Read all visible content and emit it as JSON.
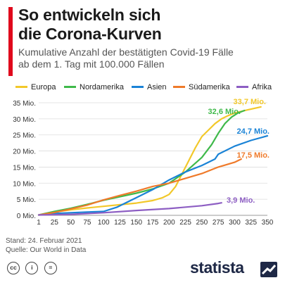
{
  "header": {
    "title_line1": "So entwickeln sich",
    "title_line2": "die Corona-Kurven",
    "subtitle_line1": "Kumulative Anzahl der bestätigten Covid-19 Fälle",
    "subtitle_line2": "ab dem 1. Tag mit 100.000 Fällen",
    "accent_color": "#e0081c"
  },
  "footer": {
    "stand": "Stand: 24. Februar 2021",
    "source": "Quelle: Our World in Data",
    "brand": "statista",
    "license_icons": [
      "creative-commons-icon",
      "attribution-icon",
      "no-derivatives-icon"
    ]
  },
  "chart_data": {
    "type": "line",
    "xlim": [
      1,
      350
    ],
    "ylim": [
      0,
      35
    ],
    "x_ticks": [
      1,
      25,
      50,
      75,
      100,
      125,
      150,
      175,
      200,
      225,
      250,
      275,
      300,
      325,
      350
    ],
    "y_ticks": [
      0,
      5,
      10,
      15,
      20,
      25,
      30,
      35
    ],
    "y_tick_labels": [
      "0 Mio.",
      "5 Mio.",
      "10 Mio.",
      "15 Mio.",
      "20 Mio.",
      "25 Mio.",
      "30 Mio.",
      "35 Mio."
    ],
    "grid": true,
    "legend_position": "top",
    "series": [
      {
        "name": "Europa",
        "color": "#f2c82a",
        "end_label": "33,7 Mio.",
        "points": [
          [
            1,
            0.1
          ],
          [
            25,
            1.0
          ],
          [
            50,
            1.7
          ],
          [
            75,
            2.3
          ],
          [
            100,
            2.8
          ],
          [
            125,
            3.3
          ],
          [
            150,
            3.8
          ],
          [
            175,
            4.6
          ],
          [
            190,
            5.5
          ],
          [
            200,
            6.5
          ],
          [
            210,
            9
          ],
          [
            220,
            13
          ],
          [
            230,
            17
          ],
          [
            240,
            21
          ],
          [
            250,
            24.5
          ],
          [
            260,
            26.5
          ],
          [
            270,
            28.5
          ],
          [
            280,
            30
          ],
          [
            290,
            31
          ],
          [
            300,
            31.8
          ],
          [
            320,
            32.8
          ],
          [
            340,
            33.7
          ]
        ]
      },
      {
        "name": "Nordamerika",
        "color": "#3fb94a",
        "end_label": "32,6 Mio.",
        "points": [
          [
            1,
            0.1
          ],
          [
            25,
            1.2
          ],
          [
            50,
            2.2
          ],
          [
            75,
            3.4
          ],
          [
            100,
            4.7
          ],
          [
            125,
            5.8
          ],
          [
            150,
            6.9
          ],
          [
            175,
            8.2
          ],
          [
            200,
            10
          ],
          [
            225,
            13.5
          ],
          [
            250,
            18
          ],
          [
            265,
            22
          ],
          [
            275,
            25.5
          ],
          [
            285,
            28.5
          ],
          [
            295,
            30.5
          ],
          [
            305,
            31.8
          ],
          [
            315,
            32.6
          ]
        ]
      },
      {
        "name": "Asien",
        "color": "#1a83d6",
        "end_label": "24,7 Mio.",
        "points": [
          [
            1,
            0.1
          ],
          [
            25,
            0.6
          ],
          [
            50,
            0.8
          ],
          [
            75,
            1.0
          ],
          [
            100,
            1.2
          ],
          [
            120,
            2.5
          ],
          [
            150,
            5.5
          ],
          [
            175,
            8
          ],
          [
            200,
            11
          ],
          [
            225,
            13.5
          ],
          [
            250,
            15.5
          ],
          [
            270,
            17.5
          ],
          [
            275,
            19
          ],
          [
            300,
            21.5
          ],
          [
            325,
            23.3
          ],
          [
            350,
            24.7
          ]
        ]
      },
      {
        "name": "Südamerika",
        "color": "#ef7a2a",
        "end_label": "17,5 Mio.",
        "points": [
          [
            1,
            0.1
          ],
          [
            25,
            0.9
          ],
          [
            50,
            2.0
          ],
          [
            75,
            3.2
          ],
          [
            100,
            4.8
          ],
          [
            125,
            6.2
          ],
          [
            150,
            7.5
          ],
          [
            175,
            9
          ],
          [
            200,
            10
          ],
          [
            225,
            11.5
          ],
          [
            250,
            13
          ],
          [
            275,
            15
          ],
          [
            300,
            16.5
          ],
          [
            310,
            17.5
          ]
        ]
      },
      {
        "name": "Afrika",
        "color": "#8d5ec3",
        "end_label": "3,9 Mio.",
        "points": [
          [
            1,
            0.1
          ],
          [
            50,
            0.3
          ],
          [
            100,
            0.8
          ],
          [
            150,
            1.5
          ],
          [
            200,
            2.1
          ],
          [
            250,
            3.0
          ],
          [
            275,
            3.7
          ],
          [
            280,
            3.9
          ]
        ]
      }
    ]
  }
}
